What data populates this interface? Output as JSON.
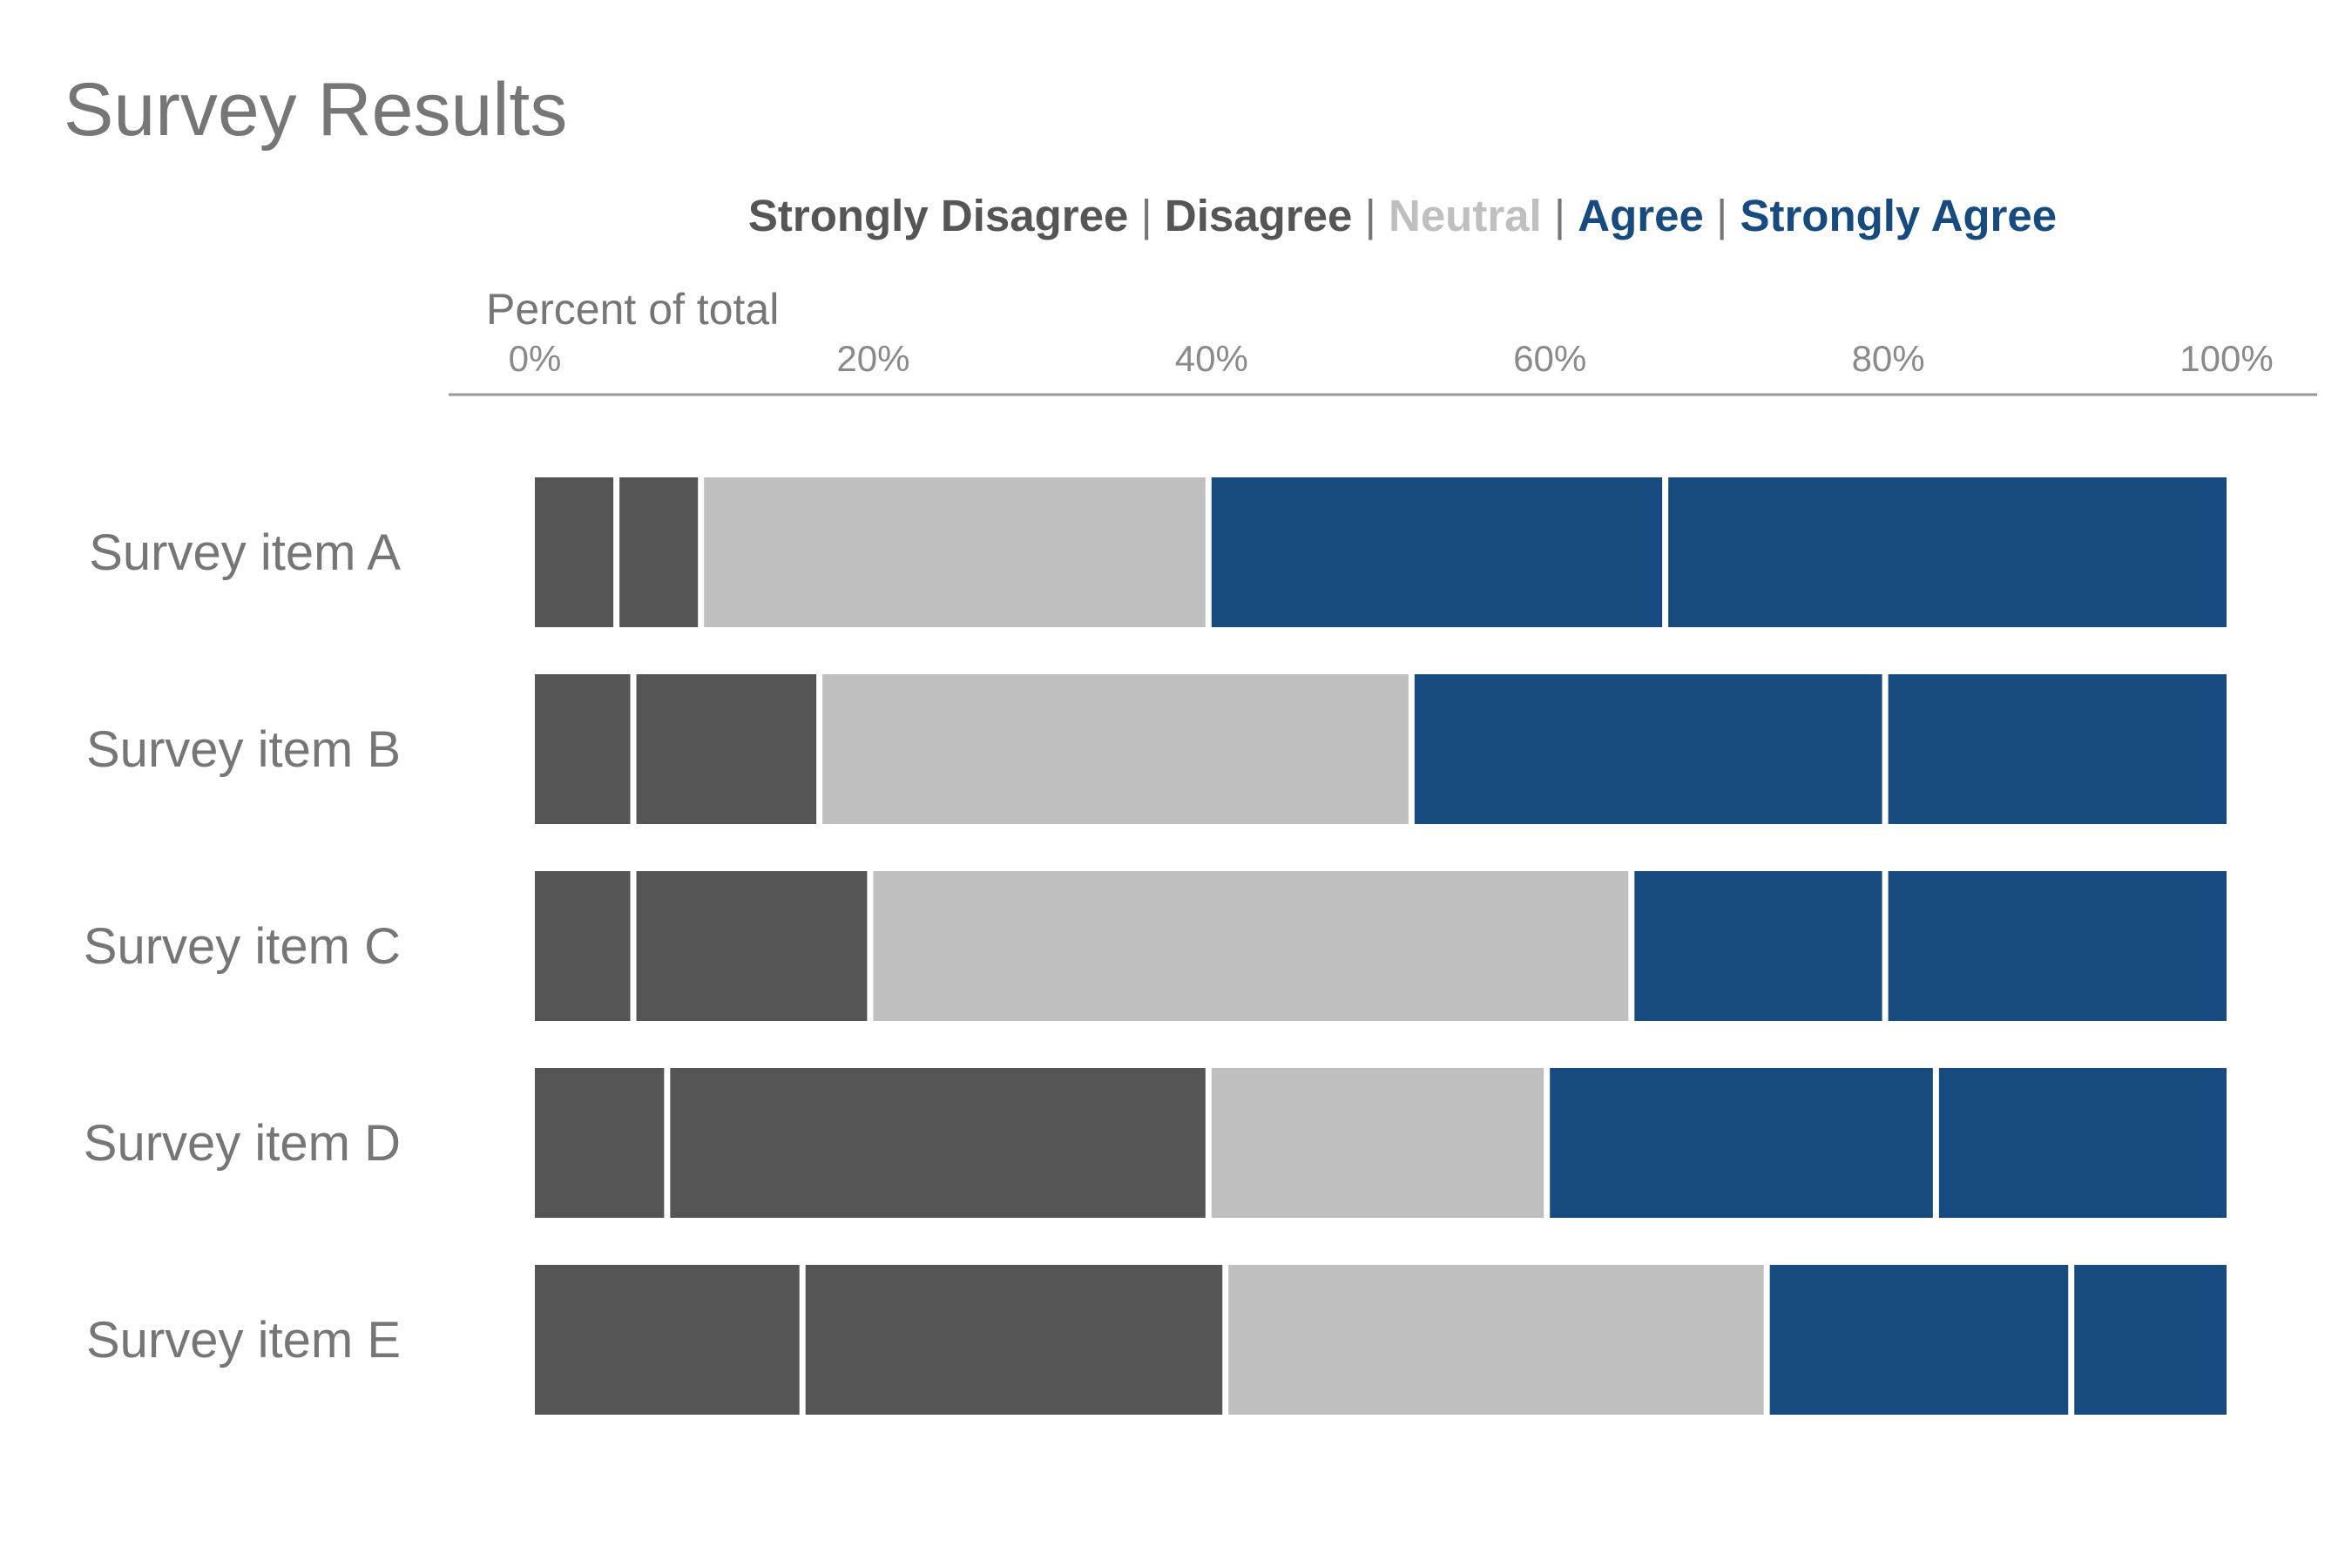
{
  "chart_data": {
    "type": "bar",
    "orientation": "horizontal",
    "stacked": true,
    "title": "Survey Results",
    "xlabel": "Percent of total",
    "ylabel": "",
    "xlim": [
      0,
      100
    ],
    "x_ticks": [
      "0%",
      "20%",
      "40%",
      "60%",
      "80%",
      "100%"
    ],
    "grid": false,
    "legend_position": "top",
    "categories": [
      "Survey item A",
      "Survey item B",
      "Survey item C",
      "Survey item D",
      "Survey item E"
    ],
    "series": [
      {
        "name": "Strongly Disagree",
        "color": "#555555",
        "values": [
          5,
          6,
          6,
          8,
          16
        ]
      },
      {
        "name": "Disagree",
        "color": "#555555",
        "values": [
          5,
          11,
          14,
          32,
          25
        ]
      },
      {
        "name": "Neutral",
        "color": "#bfbfbf",
        "values": [
          30,
          35,
          45,
          20,
          32
        ]
      },
      {
        "name": "Agree",
        "color": "#174a7e",
        "values": [
          27,
          28,
          15,
          23,
          18
        ]
      },
      {
        "name": "Strongly Agree",
        "color": "#174a7e",
        "values": [
          33,
          20,
          20,
          17,
          9
        ]
      }
    ],
    "legend_separator": "|",
    "separator_color": "#767676"
  }
}
